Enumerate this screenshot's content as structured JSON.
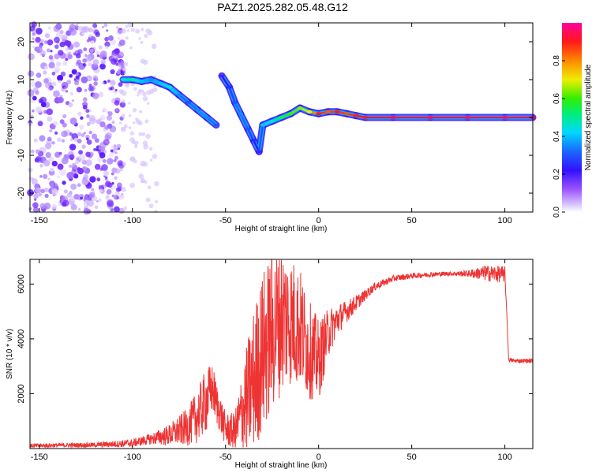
{
  "title": "PAZ1.2025.282.05.48.G12",
  "colors": {
    "snr_line": "#ee3333",
    "ridge_high": "#ee2222",
    "ridge_mid": "#22cc22",
    "ridge_low": "#2244ff",
    "noise": "#9b6bff"
  },
  "chart_data": [
    {
      "type": "heatmap",
      "xlabel": "Height of straight line (km)",
      "ylabel": "Frequency (Hz)",
      "xlim": [
        -155,
        115
      ],
      "ylim": [
        -25,
        25
      ],
      "x_ticks": [
        -150,
        -100,
        -50,
        0,
        50,
        100
      ],
      "y_ticks": [
        20,
        10,
        0,
        -10,
        -20
      ],
      "colorbar": {
        "label": "Normalized spectral amplitude",
        "range": [
          0,
          1
        ],
        "ticks": [
          0.0,
          0.2,
          0.4,
          0.6,
          0.8
        ],
        "tick_labels": [
          "0.0",
          "0.2",
          "0.4",
          "0.6",
          "0.8"
        ],
        "colormap": "rainbow (violet-blue-cyan-green-yellow-red-magenta)"
      },
      "ridge": [
        {
          "x": -105,
          "y": 10,
          "amp": 0.45
        },
        {
          "x": -100,
          "y": 10,
          "amp": 0.5
        },
        {
          "x": -95,
          "y": 9.5,
          "amp": 0.4
        },
        {
          "x": -90,
          "y": 10,
          "amp": 0.35
        },
        {
          "x": -85,
          "y": 9,
          "amp": 0.4
        },
        {
          "x": -80,
          "y": 8,
          "amp": 0.45
        },
        {
          "x": -75,
          "y": 6,
          "amp": 0.35
        },
        {
          "x": -70,
          "y": 4,
          "amp": 0.3
        },
        {
          "x": -65,
          "y": 2,
          "amp": 0.35
        },
        {
          "x": -60,
          "y": 0,
          "amp": 0.35
        },
        {
          "x": -55,
          "y": -2,
          "amp": 0.3
        },
        {
          "x": -52,
          "y": 11,
          "amp": 0.2
        },
        {
          "x": -48,
          "y": 8,
          "amp": 0.25
        },
        {
          "x": -45,
          "y": 4,
          "amp": 0.3
        },
        {
          "x": -42,
          "y": 1,
          "amp": 0.35
        },
        {
          "x": -38,
          "y": -3,
          "amp": 0.3
        },
        {
          "x": -35,
          "y": -6,
          "amp": 0.25
        },
        {
          "x": -32,
          "y": -9,
          "amp": 0.2
        },
        {
          "x": -30,
          "y": -2,
          "amp": 0.4
        },
        {
          "x": -25,
          "y": -1,
          "amp": 0.45
        },
        {
          "x": -20,
          "y": 0,
          "amp": 0.55
        },
        {
          "x": -15,
          "y": 1,
          "amp": 0.6
        },
        {
          "x": -10,
          "y": 2.5,
          "amp": 0.65
        },
        {
          "x": -5,
          "y": 1.5,
          "amp": 0.7
        },
        {
          "x": 0,
          "y": 1,
          "amp": 0.9
        },
        {
          "x": 5,
          "y": 1.5,
          "amp": 0.85
        },
        {
          "x": 10,
          "y": 1.5,
          "amp": 0.9
        },
        {
          "x": 15,
          "y": 1,
          "amp": 0.85
        },
        {
          "x": 20,
          "y": 0.5,
          "amp": 0.9
        },
        {
          "x": 25,
          "y": 0,
          "amp": 0.92
        },
        {
          "x": 40,
          "y": 0,
          "amp": 0.95
        },
        {
          "x": 60,
          "y": 0,
          "amp": 0.95
        },
        {
          "x": 80,
          "y": 0,
          "amp": 0.95
        },
        {
          "x": 100,
          "y": 0,
          "amp": 0.95
        },
        {
          "x": 115,
          "y": 0,
          "amp": 0.95
        }
      ]
    },
    {
      "type": "line",
      "xlabel": "Height of straight line (km)",
      "ylabel": "SNR (10 * v/v)",
      "xlim": [
        -155,
        115
      ],
      "ylim": [
        0,
        6900
      ],
      "x_ticks": [
        -150,
        -100,
        -50,
        0,
        50,
        100
      ],
      "y_ticks": [
        2000,
        4000,
        6000
      ],
      "series": [
        {
          "name": "SNR",
          "x": [
            -155,
            -140,
            -120,
            -100,
            -90,
            -80,
            -70,
            -65,
            -60,
            -57,
            -55,
            -50,
            -45,
            -40,
            -35,
            -30,
            -25,
            -20,
            -15,
            -10,
            -5,
            0,
            5,
            10,
            15,
            20,
            25,
            30,
            40,
            50,
            60,
            70,
            80,
            90,
            100,
            101,
            102,
            105,
            110,
            115
          ],
          "y": [
            100,
            120,
            130,
            200,
            350,
            500,
            800,
            1200,
            1800,
            2200,
            1700,
            700,
            600,
            1500,
            2500,
            3500,
            4300,
            4800,
            4700,
            4400,
            3600,
            3200,
            4200,
            4700,
            5000,
            5300,
            5600,
            5900,
            6200,
            6300,
            6350,
            6380,
            6380,
            6400,
            6350,
            5000,
            3250,
            3200,
            3200,
            3200
          ],
          "jitter": [
            80,
            80,
            90,
            150,
            200,
            400,
            700,
            1000,
            1200,
            900,
            800,
            600,
            700,
            1800,
            2600,
            3000,
            3000,
            2800,
            2400,
            2200,
            1800,
            1500,
            900,
            600,
            400,
            300,
            200,
            150,
            120,
            100,
            90,
            80,
            120,
            300,
            300,
            0,
            80,
            80,
            80,
            80
          ]
        }
      ]
    }
  ]
}
